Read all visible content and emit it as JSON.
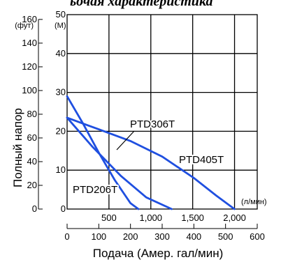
{
  "header_fragment": "ьочая характеристика",
  "chart_data": {
    "type": "line",
    "xlabel": "Подача (Амер. гал/мин)",
    "ylabel": "Полный напор",
    "x_unit_secondary": "(л/мин)",
    "y_unit_feet": "(фут)",
    "y_unit_meters": "(M)",
    "x_gpm_range": [
      0,
      600
    ],
    "x_gpm_ticks": [
      "0",
      "100",
      "200",
      "300",
      "400",
      "500",
      "600"
    ],
    "x_lpm_ticks": [
      "500",
      "1,000",
      "1,500",
      "2,000"
    ],
    "x_lpm_tick_values": [
      500,
      1000,
      1500,
      2000
    ],
    "y_m_range": [
      0,
      50
    ],
    "y_m_ticks": [
      "10",
      "20",
      "30",
      "40",
      "50"
    ],
    "y_ft_ticks": [
      "0",
      "20",
      "40",
      "60",
      "80",
      "100",
      "120",
      "140",
      "160"
    ],
    "grid": true,
    "series": [
      {
        "name": "PTD306T",
        "color": "#1f4fe0",
        "x_gpm": [
          0,
          80,
          170,
          250,
          330
        ],
        "y_m": [
          23.5,
          16,
          8.5,
          3,
          0
        ]
      },
      {
        "name": "PTD405T",
        "color": "#1f4fe0",
        "x_gpm": [
          0,
          100,
          200,
          300,
          400,
          470,
          528
        ],
        "y_m": [
          23.5,
          20.5,
          17.5,
          13.5,
          8,
          3.5,
          0
        ]
      },
      {
        "name": "PTD206T",
        "color": "#1f4fe0",
        "x_gpm": [
          0,
          50,
          100,
          150,
          200,
          225
        ],
        "y_m": [
          29,
          22,
          14.5,
          7.5,
          1.5,
          0
        ]
      }
    ]
  }
}
